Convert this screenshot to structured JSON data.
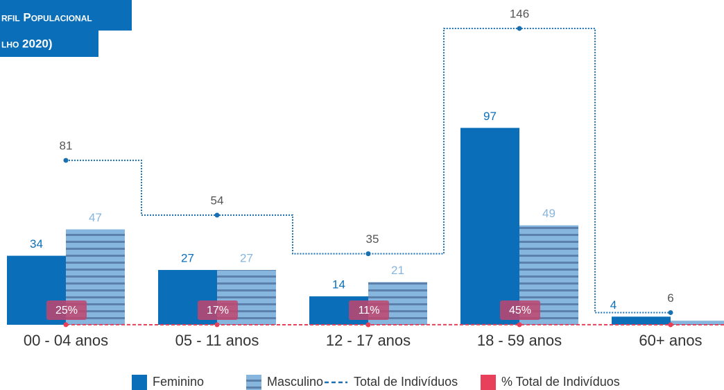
{
  "chart_data": {
    "type": "bar",
    "title": [
      "rfil Populacional",
      "lho 2020)"
    ],
    "categories": [
      "00 - 04 anos",
      "05 - 11 anos",
      "12 - 17 anos",
      "18 - 59 anos",
      "60+ anos"
    ],
    "ylim": [
      0,
      160
    ],
    "y2lim": [
      0,
      1000
    ],
    "series": [
      {
        "name": "Feminino",
        "type": "bar",
        "color": "#0a6fb8",
        "values": [
          34,
          27,
          14,
          97,
          4
        ]
      },
      {
        "name": "Masculino",
        "type": "bar",
        "color": "#86b6dd",
        "stripe_color": "#5b80ab",
        "values": [
          47,
          27,
          21,
          49,
          2
        ]
      },
      {
        "name": "Total de Indivíduos",
        "type": "line",
        "color": "#1a6fb0",
        "values": [
          81,
          54,
          35,
          146,
          6
        ]
      },
      {
        "name": "% Total de Indivíduos",
        "type": "line",
        "axis": "y2",
        "color": "#e8405a",
        "values": [
          25,
          17,
          11,
          45,
          2
        ],
        "value_labels": [
          "25%",
          "17%",
          "11%",
          "45%",
          null
        ]
      }
    ]
  }
}
